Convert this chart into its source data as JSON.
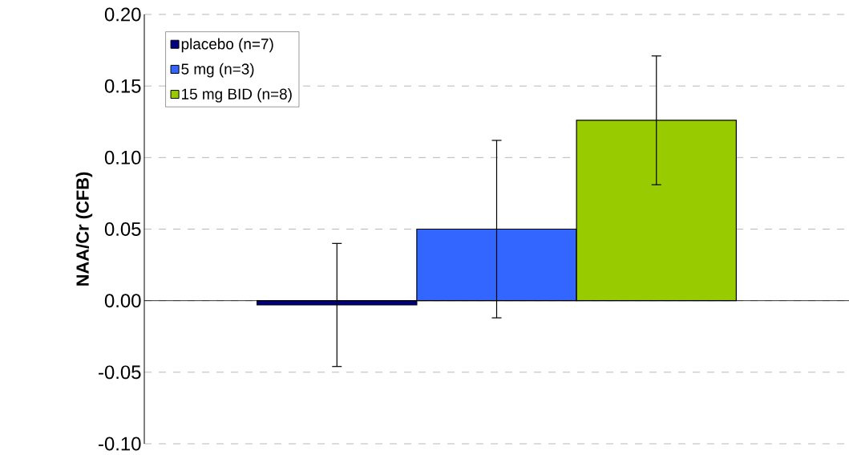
{
  "chart_data": {
    "type": "bar",
    "ylabel": "NAA/Cr (CFB)",
    "categories": [
      null
    ],
    "series": [
      {
        "name": "placebo (n=7)",
        "color": "#000080",
        "values": [
          -0.003
        ],
        "errors": [
          0.043
        ]
      },
      {
        "name": "5 mg (n=3)",
        "color": "#3366ff",
        "values": [
          0.05
        ],
        "errors": [
          0.062
        ]
      },
      {
        "name": "15 mg BID (n=8)",
        "color": "#99cc00",
        "values": [
          0.126
        ],
        "errors": [
          0.045
        ]
      }
    ],
    "ylim": [
      -0.1,
      0.2
    ],
    "yticks": [
      {
        "value": -0.1,
        "label": "-0.10"
      },
      {
        "value": -0.05,
        "label": "-0.05"
      },
      {
        "value": 0,
        "label": "0.00"
      },
      {
        "value": 0.05,
        "label": "0.05"
      },
      {
        "value": 0.1,
        "label": "0.10"
      },
      {
        "value": 0.15,
        "label": "0.15"
      },
      {
        "value": 0.2,
        "label": "0.20"
      }
    ],
    "grid": "y",
    "legend": "top left"
  }
}
